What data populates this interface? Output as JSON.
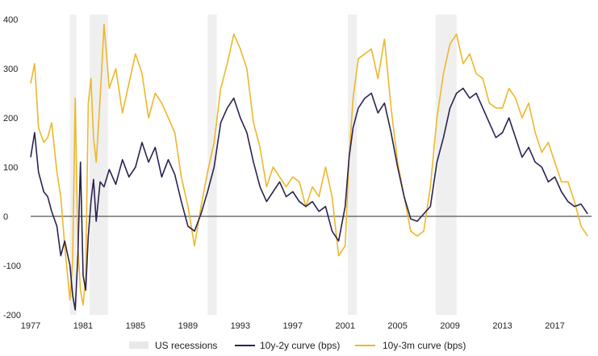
{
  "chart_data": {
    "type": "line",
    "title": "",
    "xlabel": "",
    "ylabel": "",
    "xlim": [
      1977,
      2019.8
    ],
    "ylim": [
      -200,
      400
    ],
    "x_ticks": [
      "1977",
      "1981",
      "1985",
      "1989",
      "1993",
      "1997",
      "2001",
      "2005",
      "2009",
      "2013",
      "2017"
    ],
    "y_ticks": [
      {
        "value": 400,
        "label": "400"
      },
      {
        "value": 300,
        "label": "300"
      },
      {
        "value": 200,
        "label": "200"
      },
      {
        "value": 100,
        "label": "100"
      },
      {
        "value": 0,
        "label": "0"
      },
      {
        "value": -100,
        "label": "-100"
      },
      {
        "value": -200,
        "label": "-200"
      }
    ],
    "negative_tick_color": "#e00000",
    "recessions": [
      {
        "start": 1980.0,
        "end": 1980.5
      },
      {
        "start": 1981.5,
        "end": 1982.9
      },
      {
        "start": 1990.5,
        "end": 1991.2
      },
      {
        "start": 2001.2,
        "end": 2001.9
      },
      {
        "start": 2007.9,
        "end": 2009.5
      }
    ],
    "recession_color": "#efefef",
    "zero_line_color": "#555555",
    "legend": {
      "placement": "bottom",
      "items": [
        {
          "key": "recessions",
          "label": "US recessions",
          "color": "#e8e8e8"
        },
        {
          "key": "s10y2y",
          "label": "10y-2y curve (bps)",
          "color": "#2b2352"
        },
        {
          "key": "s10y3m",
          "label": "10y-3m curve (bps)",
          "color": "#eeb72b"
        }
      ]
    },
    "series": [
      {
        "name": "10y-2y curve (bps)",
        "color": "#2b2352",
        "x": [
          1977.0,
          1977.3,
          1977.6,
          1978.0,
          1978.3,
          1978.6,
          1979.0,
          1979.3,
          1979.6,
          1980.0,
          1980.2,
          1980.4,
          1980.6,
          1980.8,
          1981.0,
          1981.2,
          1981.4,
          1981.6,
          1981.8,
          1982.0,
          1982.3,
          1982.6,
          1983.0,
          1983.5,
          1984.0,
          1984.5,
          1985.0,
          1985.5,
          1986.0,
          1986.5,
          1987.0,
          1987.5,
          1988.0,
          1988.5,
          1989.0,
          1989.5,
          1990.0,
          1990.5,
          1991.0,
          1991.5,
          1992.0,
          1992.5,
          1993.0,
          1993.5,
          1994.0,
          1994.5,
          1995.0,
          1995.5,
          1996.0,
          1996.5,
          1997.0,
          1997.5,
          1998.0,
          1998.5,
          1999.0,
          1999.5,
          2000.0,
          2000.5,
          2001.0,
          2001.3,
          2001.6,
          2002.0,
          2002.5,
          2003.0,
          2003.5,
          2004.0,
          2004.5,
          2005.0,
          2005.5,
          2006.0,
          2006.5,
          2007.0,
          2007.5,
          2008.0,
          2008.5,
          2009.0,
          2009.5,
          2010.0,
          2010.5,
          2011.0,
          2011.5,
          2012.0,
          2012.5,
          2013.0,
          2013.5,
          2014.0,
          2014.5,
          2015.0,
          2015.5,
          2016.0,
          2016.5,
          2017.0,
          2017.5,
          2018.0,
          2018.5,
          2019.0,
          2019.5
        ],
        "values": [
          120,
          170,
          90,
          50,
          40,
          10,
          -20,
          -80,
          -50,
          -100,
          -160,
          -190,
          -80,
          110,
          -120,
          -150,
          -40,
          30,
          75,
          -10,
          70,
          60,
          95,
          65,
          115,
          80,
          100,
          150,
          110,
          140,
          80,
          115,
          85,
          30,
          -20,
          -30,
          5,
          50,
          100,
          190,
          220,
          240,
          200,
          170,
          110,
          60,
          30,
          50,
          70,
          40,
          50,
          30,
          20,
          30,
          10,
          20,
          -30,
          -50,
          20,
          120,
          180,
          220,
          240,
          250,
          210,
          230,
          170,
          100,
          40,
          -5,
          -10,
          5,
          20,
          110,
          160,
          220,
          250,
          260,
          240,
          250,
          220,
          190,
          160,
          170,
          200,
          160,
          120,
          140,
          110,
          100,
          70,
          80,
          50,
          30,
          20,
          25,
          5
        ]
      },
      {
        "name": "10y-3m curve (bps)",
        "color": "#eeb72b",
        "x": [
          1977.0,
          1977.3,
          1977.6,
          1978.0,
          1978.3,
          1978.6,
          1979.0,
          1979.3,
          1979.6,
          1980.0,
          1980.2,
          1980.4,
          1980.6,
          1980.8,
          1981.0,
          1981.2,
          1981.4,
          1981.6,
          1981.8,
          1982.0,
          1982.3,
          1982.6,
          1983.0,
          1983.5,
          1984.0,
          1984.5,
          1985.0,
          1985.5,
          1986.0,
          1986.5,
          1987.0,
          1987.5,
          1988.0,
          1988.5,
          1989.0,
          1989.5,
          1990.0,
          1990.5,
          1991.0,
          1991.5,
          1992.0,
          1992.5,
          1993.0,
          1993.5,
          1994.0,
          1994.5,
          1995.0,
          1995.5,
          1996.0,
          1996.5,
          1997.0,
          1997.5,
          1998.0,
          1998.5,
          1999.0,
          1999.5,
          2000.0,
          2000.5,
          2001.0,
          2001.3,
          2001.6,
          2002.0,
          2002.5,
          2003.0,
          2003.5,
          2004.0,
          2004.5,
          2005.0,
          2005.5,
          2006.0,
          2006.5,
          2007.0,
          2007.5,
          2008.0,
          2008.5,
          2009.0,
          2009.5,
          2010.0,
          2010.5,
          2011.0,
          2011.5,
          2012.0,
          2012.5,
          2013.0,
          2013.5,
          2014.0,
          2014.5,
          2015.0,
          2015.5,
          2016.0,
          2016.5,
          2017.0,
          2017.5,
          2018.0,
          2018.5,
          2019.0,
          2019.5
        ],
        "values": [
          270,
          310,
          180,
          150,
          160,
          190,
          90,
          40,
          -60,
          -170,
          -90,
          240,
          -60,
          -150,
          -180,
          -120,
          230,
          280,
          160,
          110,
          240,
          390,
          260,
          300,
          210,
          270,
          330,
          290,
          200,
          250,
          230,
          200,
          170,
          80,
          20,
          -60,
          20,
          90,
          150,
          260,
          310,
          370,
          340,
          300,
          190,
          140,
          60,
          100,
          80,
          60,
          80,
          70,
          20,
          60,
          40,
          100,
          40,
          -80,
          -60,
          120,
          240,
          320,
          330,
          340,
          280,
          360,
          220,
          110,
          40,
          -30,
          -40,
          -30,
          60,
          200,
          290,
          350,
          370,
          310,
          330,
          290,
          280,
          230,
          220,
          220,
          260,
          240,
          200,
          230,
          170,
          130,
          150,
          110,
          70,
          70,
          30,
          -20,
          -40
        ]
      }
    ]
  }
}
